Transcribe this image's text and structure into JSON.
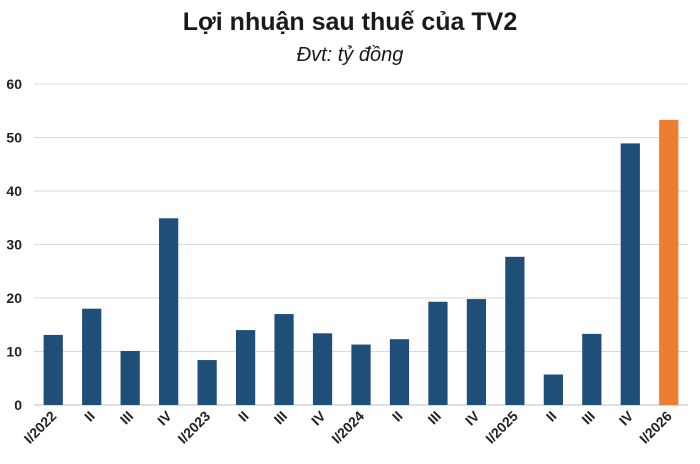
{
  "chart_data": {
    "type": "bar",
    "title": "Lợi nhuận sau thuế của TV2",
    "subtitle": "Đvt: tỷ đồng",
    "categories": [
      "I/2022",
      "II",
      "III",
      "IV",
      "I/2023",
      "II",
      "III",
      "IV",
      "I/2024",
      "II",
      "III",
      "IV",
      "I/2025",
      "II",
      "III",
      "IV",
      "I/2026"
    ],
    "values": [
      13.1,
      18.0,
      10.1,
      34.9,
      8.4,
      14.0,
      17.0,
      13.4,
      11.3,
      12.3,
      19.3,
      19.8,
      27.7,
      5.7,
      13.3,
      48.9,
      53.3
    ],
    "ylim": [
      0,
      60
    ],
    "yticks": [
      0,
      10,
      20,
      30,
      40,
      50,
      60
    ],
    "grid": true,
    "colors": {
      "default": "#1f4e79",
      "highlight": "#ed7d31",
      "grid": "#d9d9d9"
    },
    "highlight_index": 16
  }
}
